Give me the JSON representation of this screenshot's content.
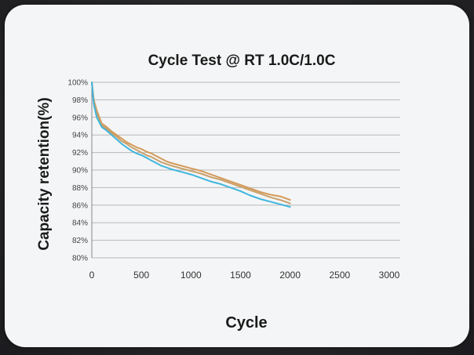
{
  "chart_data": {
    "type": "line",
    "title": "Cycle Test @ RT 1.0C/1.0C",
    "xlabel": "Cycle",
    "ylabel": "Capacity retention(%)",
    "xlim": [
      0,
      3000
    ],
    "ylim": [
      80,
      100
    ],
    "xticks": [
      0,
      500,
      1000,
      1500,
      2000,
      2500,
      3000
    ],
    "xtick_labels": [
      "0",
      "500",
      "1000",
      "1500",
      "2000",
      "2500",
      "3000"
    ],
    "yticks": [
      80,
      82,
      84,
      86,
      88,
      90,
      92,
      94,
      96,
      98,
      100
    ],
    "ytick_labels": [
      "80%",
      "82%",
      "84%",
      "86%",
      "88%",
      "90%",
      "92%",
      "94%",
      "96%",
      "98%",
      "100%"
    ],
    "grid": "horizontal",
    "legend": "none",
    "series": [
      {
        "color": "#d49a5a",
        "x": [
          0,
          20,
          50,
          100,
          150,
          200,
          250,
          300,
          350,
          400,
          450,
          500,
          550,
          600,
          650,
          700,
          750,
          800,
          900,
          1000,
          1100,
          1200,
          1300,
          1400,
          1500,
          1600,
          1700,
          1800,
          1900,
          2000
        ],
        "y": [
          100,
          98.0,
          96.8,
          95.3,
          94.9,
          94.4,
          94.0,
          93.6,
          93.2,
          92.9,
          92.6,
          92.4,
          92.1,
          91.9,
          91.6,
          91.3,
          91.0,
          90.8,
          90.5,
          90.2,
          89.9,
          89.5,
          89.1,
          88.7,
          88.3,
          87.9,
          87.5,
          87.2,
          87.0,
          86.6
        ]
      },
      {
        "color": "#c8a06a",
        "x": [
          0,
          20,
          50,
          100,
          150,
          200,
          250,
          300,
          350,
          400,
          450,
          500,
          550,
          600,
          650,
          700,
          750,
          800,
          900,
          1000,
          1100,
          1200,
          1300,
          1400,
          1500,
          1600,
          1700,
          1800,
          1900,
          2000
        ],
        "y": [
          100,
          97.8,
          96.5,
          95.1,
          94.7,
          94.2,
          93.8,
          93.3,
          93.0,
          92.6,
          92.3,
          92.0,
          91.7,
          91.5,
          91.2,
          90.9,
          90.7,
          90.5,
          90.2,
          89.9,
          89.6,
          89.2,
          88.9,
          88.5,
          88.1,
          87.7,
          87.3,
          86.9,
          86.6,
          86.2
        ]
      },
      {
        "color": "#3fb6de",
        "x": [
          0,
          20,
          50,
          100,
          150,
          200,
          250,
          300,
          350,
          400,
          450,
          500,
          550,
          600,
          650,
          700,
          750,
          800,
          900,
          1000,
          1100,
          1200,
          1300,
          1400,
          1500,
          1600,
          1700,
          1800,
          1900,
          2000
        ],
        "y": [
          100,
          97.5,
          96.0,
          94.9,
          94.5,
          94.0,
          93.5,
          93.0,
          92.6,
          92.2,
          91.9,
          91.7,
          91.4,
          91.1,
          90.8,
          90.5,
          90.3,
          90.1,
          89.8,
          89.5,
          89.1,
          88.7,
          88.4,
          88.0,
          87.6,
          87.1,
          86.7,
          86.4,
          86.1,
          85.8
        ]
      }
    ]
  }
}
